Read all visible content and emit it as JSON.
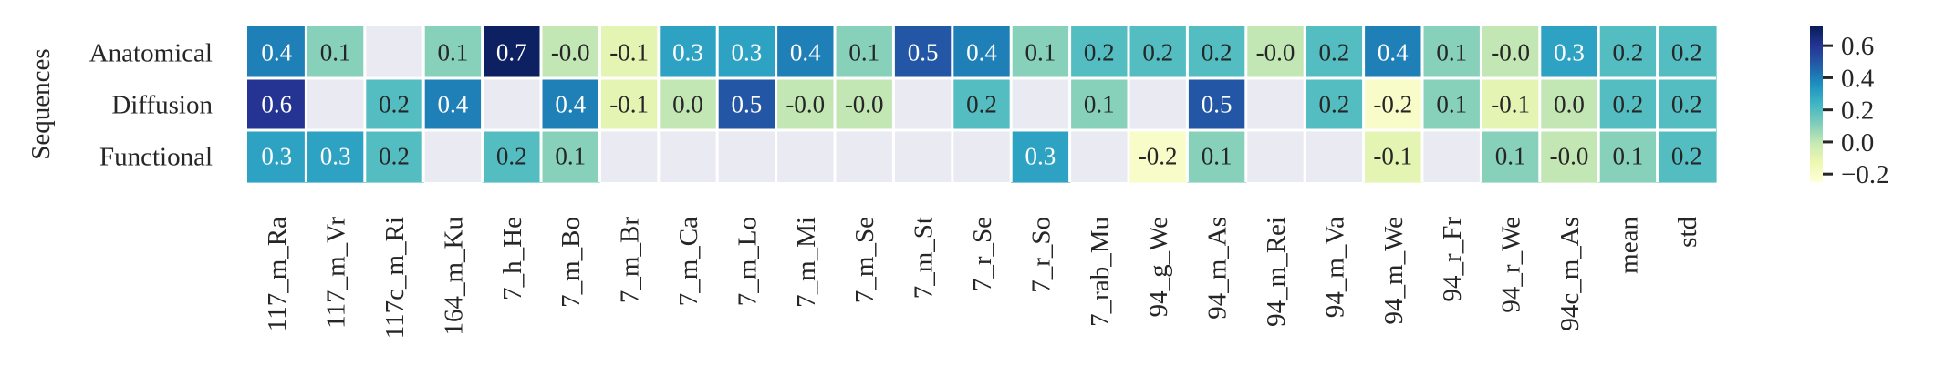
{
  "chart_data": {
    "type": "heatmap",
    "title": "",
    "xlabel": "",
    "ylabel": "Sequences",
    "rows": [
      "Anatomical",
      "Diffusion",
      "Functional"
    ],
    "columns": [
      "117_m_Ra",
      "117_m_Vr",
      "117c_m_Ri",
      "164_m_Ku",
      "7_h_He",
      "7_m_Bo",
      "7_m_Br",
      "7_m_Ca",
      "7_m_Lo",
      "7_m_Mi",
      "7_m_Se",
      "7_m_St",
      "7_r_Se",
      "7_r_So",
      "7_rab_Mu",
      "94_g_We",
      "94_m_As",
      "94_m_Rei",
      "94_m_Va",
      "94_m_We",
      "94_r_Fr",
      "94_r_We",
      "94c_m_As",
      "mean",
      "std"
    ],
    "values": [
      [
        0.4,
        0.1,
        null,
        0.1,
        0.7,
        -0.0,
        -0.1,
        0.3,
        0.3,
        0.4,
        0.1,
        0.5,
        0.4,
        0.1,
        0.2,
        0.2,
        0.2,
        -0.0,
        0.2,
        0.4,
        0.1,
        -0.0,
        0.3,
        0.2,
        0.2
      ],
      [
        0.6,
        null,
        0.2,
        0.4,
        null,
        0.4,
        -0.1,
        0.0,
        0.5,
        -0.0,
        -0.0,
        null,
        0.2,
        null,
        0.1,
        null,
        0.5,
        null,
        0.2,
        -0.2,
        0.1,
        -0.1,
        0.0,
        0.2,
        0.2
      ],
      [
        0.3,
        0.3,
        0.2,
        null,
        0.2,
        0.1,
        null,
        null,
        null,
        null,
        null,
        null,
        null,
        0.3,
        null,
        -0.2,
        0.1,
        null,
        null,
        -0.1,
        null,
        0.1,
        -0.0,
        0.1,
        0.2
      ]
    ],
    "cell_labels": [
      [
        "0.4",
        "0.1",
        "",
        "0.1",
        "0.7",
        "-0.0",
        "-0.1",
        "0.3",
        "0.3",
        "0.4",
        "0.1",
        "0.5",
        "0.4",
        "0.1",
        "0.2",
        "0.2",
        "0.2",
        "-0.0",
        "0.2",
        "0.4",
        "0.1",
        "-0.0",
        "0.3",
        "0.2",
        "0.2"
      ],
      [
        "0.6",
        "",
        "0.2",
        "0.4",
        "",
        "0.4",
        "-0.1",
        "0.0",
        "0.5",
        "-0.0",
        "-0.0",
        "",
        "0.2",
        "",
        "0.1",
        "",
        "0.5",
        "",
        "0.2",
        "-0.2",
        "0.1",
        "-0.1",
        "0.0",
        "0.2",
        "0.2"
      ],
      [
        "0.3",
        "0.3",
        "0.2",
        "",
        "0.2",
        "0.1",
        "",
        "",
        "",
        "",
        "",
        "",
        "",
        "0.3",
        "",
        "-0.2",
        "0.1",
        "",
        "",
        "-0.1",
        "",
        "0.1",
        "-0.0",
        "0.1",
        "0.2"
      ]
    ],
    "colormap": "YlGnBu",
    "vmin": -0.25,
    "vmax": 0.72,
    "missing_color": "#eaeaf2",
    "colorbar_ticks": [
      0.6,
      0.4,
      0.2,
      0.0,
      -0.2
    ],
    "colorbar_tick_labels": [
      "0.6",
      "0.4",
      "0.2",
      "0.0",
      "−0.2"
    ],
    "grid": true,
    "legend": "colorbar-right"
  }
}
